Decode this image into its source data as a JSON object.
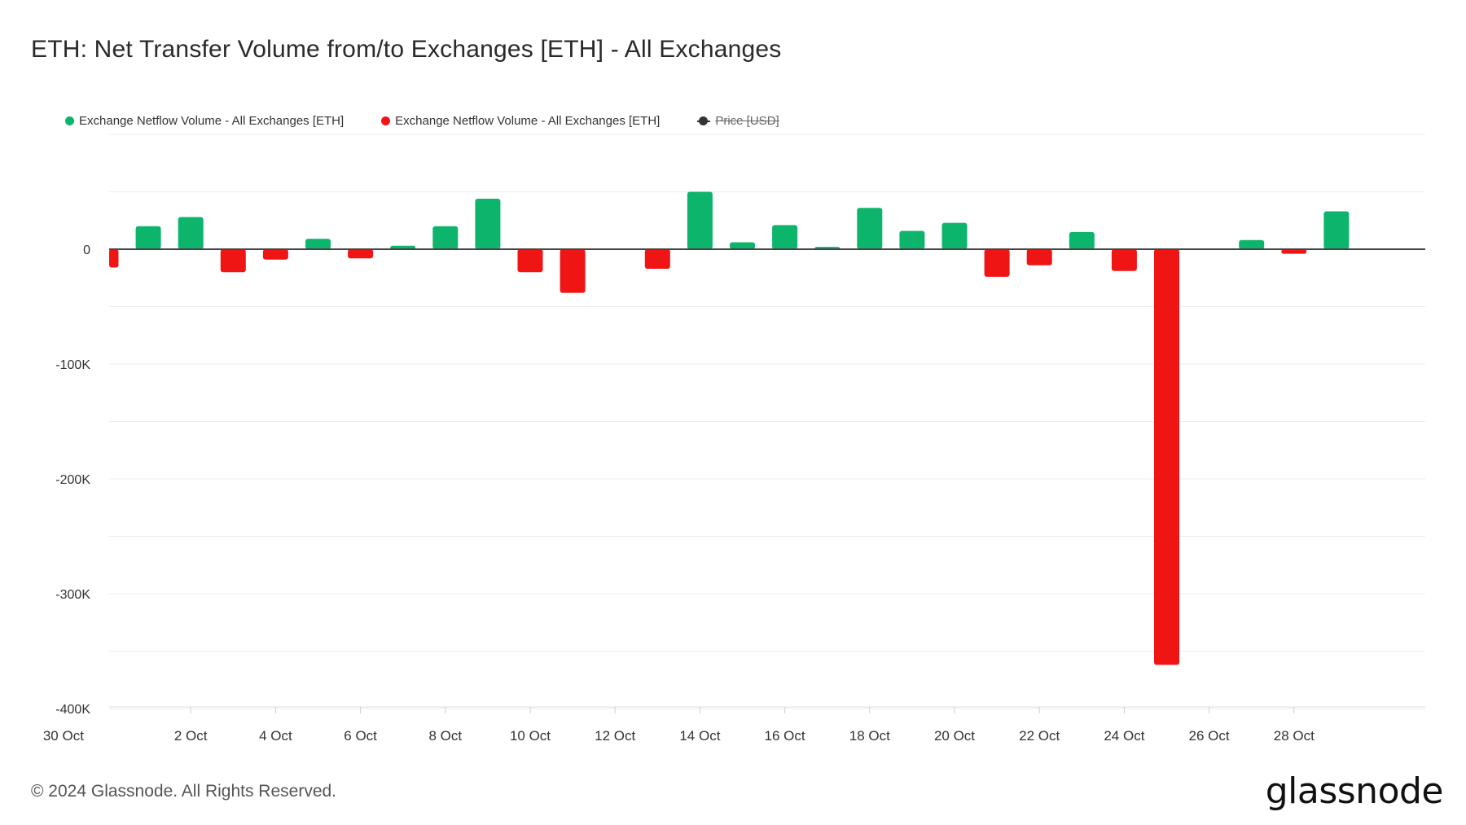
{
  "title": "ETH: Net Transfer Volume from/to Exchanges [ETH] - All Exchanges",
  "legend": [
    {
      "label": "Exchange Netflow Volume - All Exchanges [ETH]",
      "color": "#0cb46c"
    },
    {
      "label": "Exchange Netflow Volume - All Exchanges [ETH]",
      "color": "#ef1515"
    },
    {
      "label": "Price [USD]",
      "color": "#333333",
      "hidden": true
    }
  ],
  "footer": "© 2024 Glassnode. All Rights Reserved.",
  "logo": "glassnode",
  "chart_data": {
    "type": "bar",
    "x_start": "2024-09-30",
    "ylim": [
      -400000,
      100000
    ],
    "y_ticks": [
      {
        "value": 0,
        "label": "0"
      },
      {
        "value": -100000,
        "label": "-100K"
      },
      {
        "value": -200000,
        "label": "-200K"
      },
      {
        "value": -300000,
        "label": "-300K"
      },
      {
        "value": -400000,
        "label": "-400K"
      }
    ],
    "x_ticks": [
      "2 Oct",
      "4 Oct",
      "6 Oct",
      "8 Oct",
      "10 Oct",
      "12 Oct",
      "14 Oct",
      "16 Oct",
      "18 Oct",
      "20 Oct",
      "22 Oct",
      "24 Oct",
      "26 Oct",
      "28 Oct",
      "30 Oct"
    ],
    "x": [
      "30 Sep",
      "1 Oct",
      "2 Oct",
      "3 Oct",
      "4 Oct",
      "5 Oct",
      "6 Oct",
      "7 Oct",
      "8 Oct",
      "9 Oct",
      "10 Oct",
      "11 Oct",
      "12 Oct",
      "13 Oct",
      "14 Oct",
      "15 Oct",
      "16 Oct",
      "17 Oct",
      "18 Oct",
      "19 Oct",
      "20 Oct",
      "21 Oct",
      "22 Oct",
      "23 Oct",
      "24 Oct",
      "25 Oct",
      "26 Oct",
      "27 Oct",
      "28 Oct",
      "29 Oct"
    ],
    "values": [
      -16000,
      20000,
      28000,
      -20000,
      -9000,
      9000,
      -8000,
      3000,
      20000,
      44000,
      -20000,
      -38000,
      0,
      -17000,
      50000,
      6000,
      21000,
      2000,
      36000,
      16000,
      23000,
      -24000,
      -14000,
      15000,
      -19000,
      -362000,
      0,
      8000,
      -4000,
      33000
    ],
    "positive_color": "#0cb46c",
    "negative_color": "#ef1515",
    "grid": true
  }
}
